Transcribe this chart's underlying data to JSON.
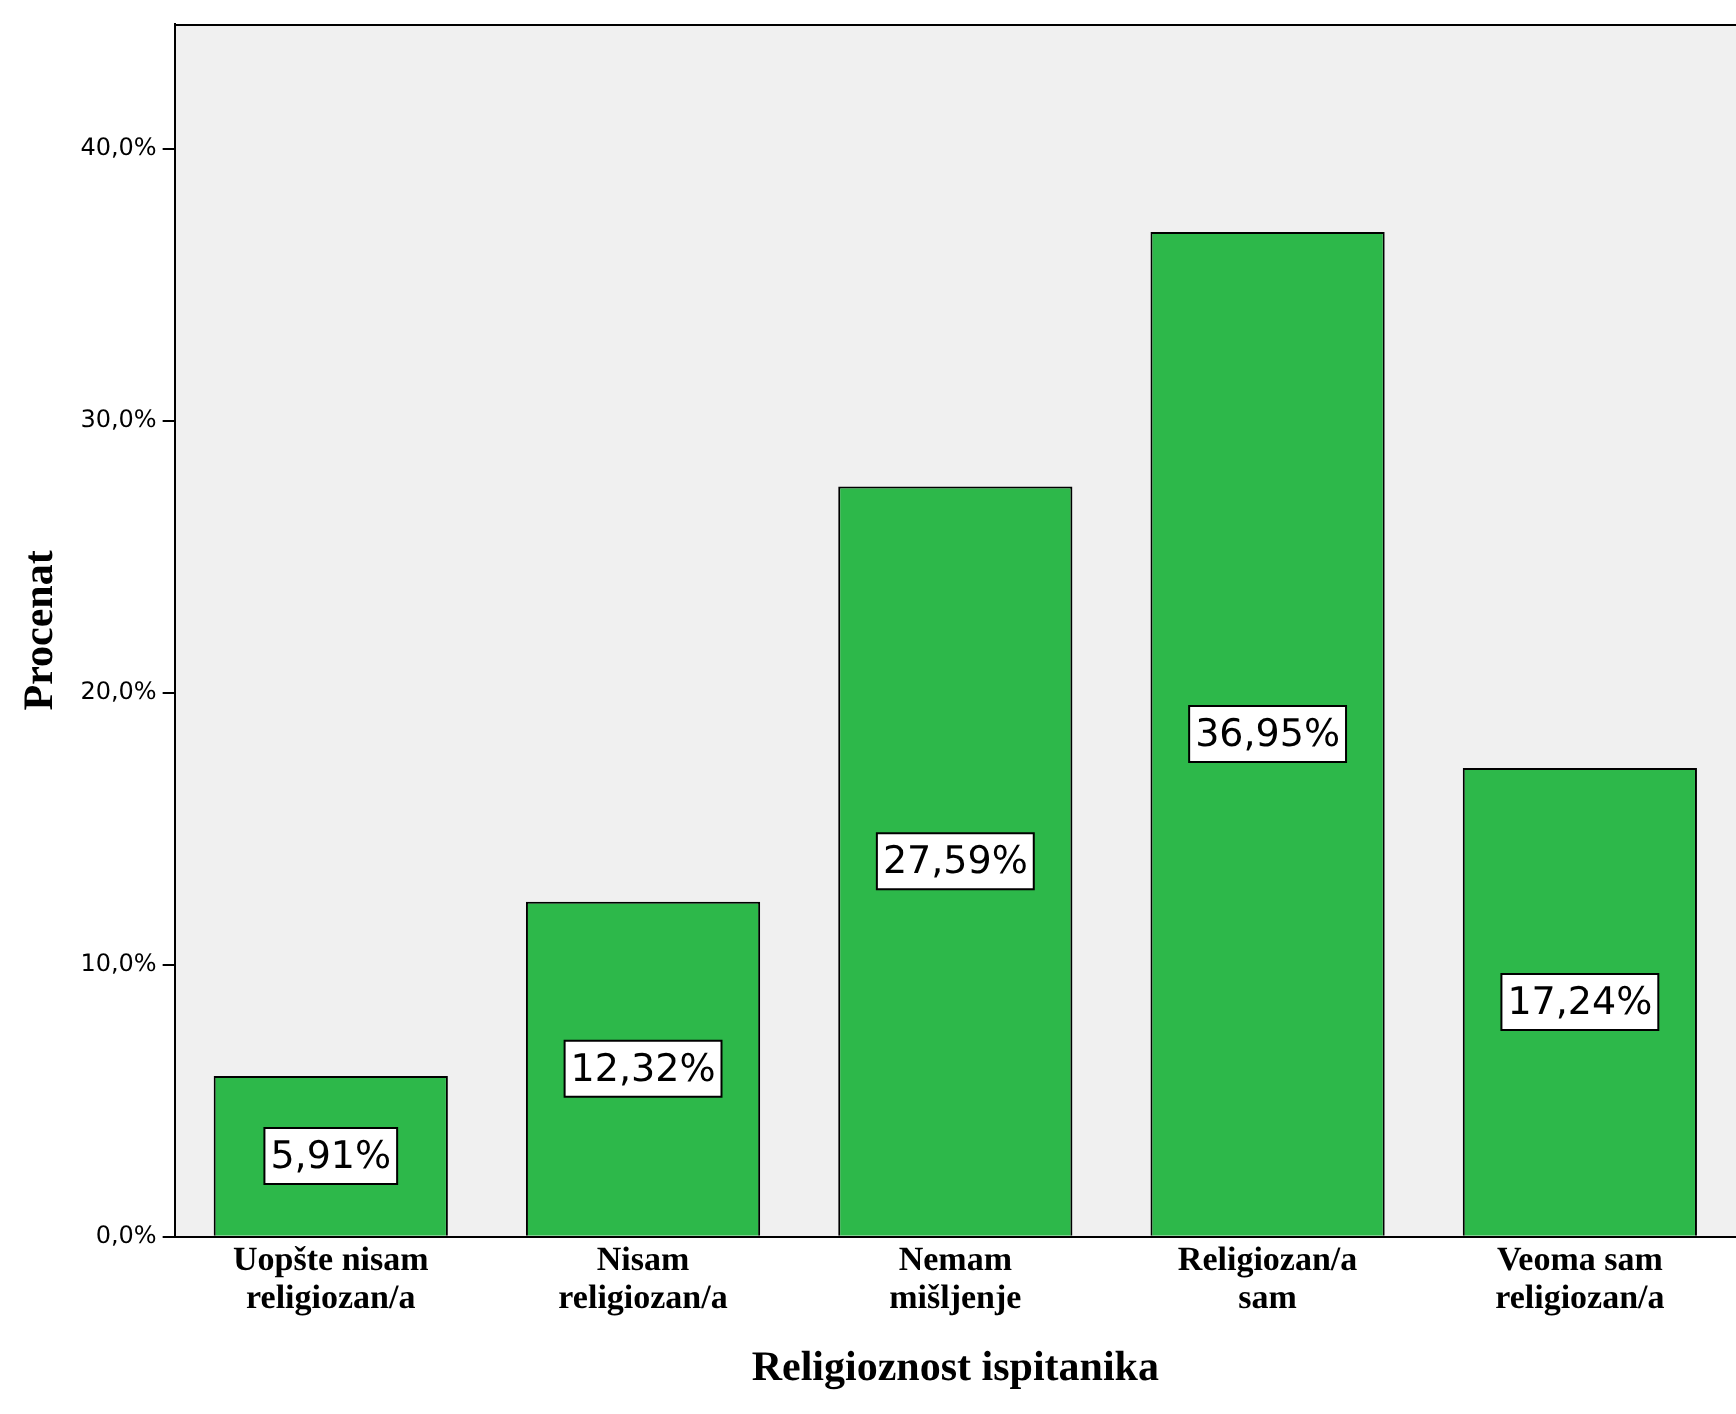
{
  "chart_data": {
    "type": "bar",
    "xlabel": "Religioznost ispitanika",
    "ylabel": "Procenat",
    "categories": [
      "Uopšte nisam\nreligiozan/a",
      "Nisam\nreligiozan/a",
      "Nemam\nmišljenje",
      "Religiozan/a\nsam",
      "Veoma sam\nreligiozan/a"
    ],
    "values": [
      5.91,
      12.32,
      27.59,
      36.95,
      17.24
    ],
    "value_labels": [
      "5,91%",
      "12,32%",
      "27,59%",
      "36,95%",
      "17,24%"
    ],
    "color": "#2db84a",
    "ylim": [
      0,
      44.6
    ],
    "yticks": [
      {
        "value": 0,
        "label": "0,0%"
      },
      {
        "value": 10,
        "label": "10,0%"
      },
      {
        "value": 20,
        "label": "20,0%"
      },
      {
        "value": 30,
        "label": "30,0%"
      },
      {
        "value": 40,
        "label": "40,0%"
      }
    ],
    "grid": false,
    "legend": false
  }
}
